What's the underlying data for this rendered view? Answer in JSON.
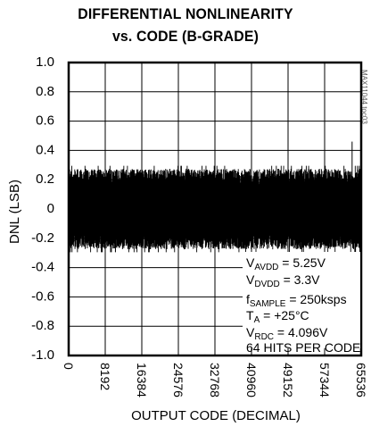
{
  "chart_data": {
    "type": "line",
    "title_line1": "DIFFERENTIAL NONLINEARITY",
    "title_line2": "vs. CODE (B-GRADE)",
    "xlabel": "OUTPUT CODE (DECIMAL)",
    "ylabel": "DNL (LSB)",
    "xlim": [
      0,
      65536
    ],
    "ylim": [
      -1.0,
      1.0
    ],
    "x_ticks": [
      "0",
      "8192",
      "16384",
      "24576",
      "32768",
      "40960",
      "49152",
      "57344",
      "65536"
    ],
    "x_tick_values": [
      0,
      8192,
      16384,
      24576,
      32768,
      40960,
      49152,
      57344,
      65536
    ],
    "y_ticks": [
      "1.0",
      "0.8",
      "0.6",
      "0.4",
      "0.2",
      "0",
      "-0.2",
      "-0.4",
      "-0.6",
      "-0.8",
      "-1.0"
    ],
    "y_tick_values": [
      1.0,
      0.8,
      0.6,
      0.4,
      0.2,
      0,
      -0.2,
      -0.4,
      -0.6,
      -0.8,
      -1.0
    ],
    "grid": true,
    "series": [
      {
        "envelope_upper_typical": 0.25,
        "envelope_lower_typical": -0.25,
        "max_peak": 0.46,
        "max_peak_code": 63500,
        "min_peak": -0.32
      }
    ],
    "annotations": {
      "vavdd_main": "V",
      "vavdd_sub": "AVDD",
      "vavdd_val": " = 5.25V",
      "vdvdd_main": "V",
      "vdvdd_sub": "DVDD",
      "vdvdd_val": " = 3.3V",
      "fs_main": "f",
      "fs_sub": "SAMPLE",
      "fs_val": " = 250ksps",
      "ta_main": "T",
      "ta_sub": "A",
      "ta_val": " = +25°C",
      "vrdc_main": "V",
      "vrdc_sub": "RDC",
      "vrdc_val": " = 4.096V",
      "hits": "64 HITS PER CODE"
    },
    "watermark": "MAX11044 toc03"
  }
}
